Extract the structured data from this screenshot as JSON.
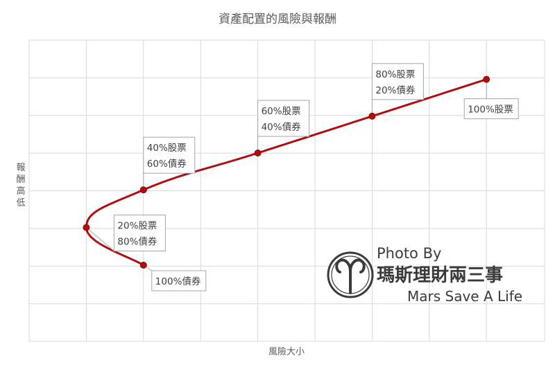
{
  "chart_data": {
    "type": "line",
    "title": "資產配置的風險與報酬",
    "xlabel": "風險大小",
    "ylabel": "報酬高低",
    "grid": true,
    "legend": "none",
    "series_color": "#b00e0e",
    "points": [
      {
        "x": 2,
        "y": 2,
        "label": [
          "100%債券"
        ]
      },
      {
        "x": 1,
        "y": 3,
        "label": [
          "20%股票",
          "80%債券"
        ]
      },
      {
        "x": 2,
        "y": 4,
        "label": [
          "40%股票",
          "60%債券"
        ]
      },
      {
        "x": 4,
        "y": 5,
        "label": [
          "60%股票",
          "40%債券"
        ]
      },
      {
        "x": 6,
        "y": 6,
        "label": [
          "80%股票",
          "20%債券"
        ]
      },
      {
        "x": 8,
        "y": 7,
        "label": [
          "100%股票"
        ]
      }
    ]
  },
  "watermark": {
    "line1": "Photo By",
    "line2": "瑪斯理財兩三事",
    "line3": "Mars Save A Life"
  }
}
